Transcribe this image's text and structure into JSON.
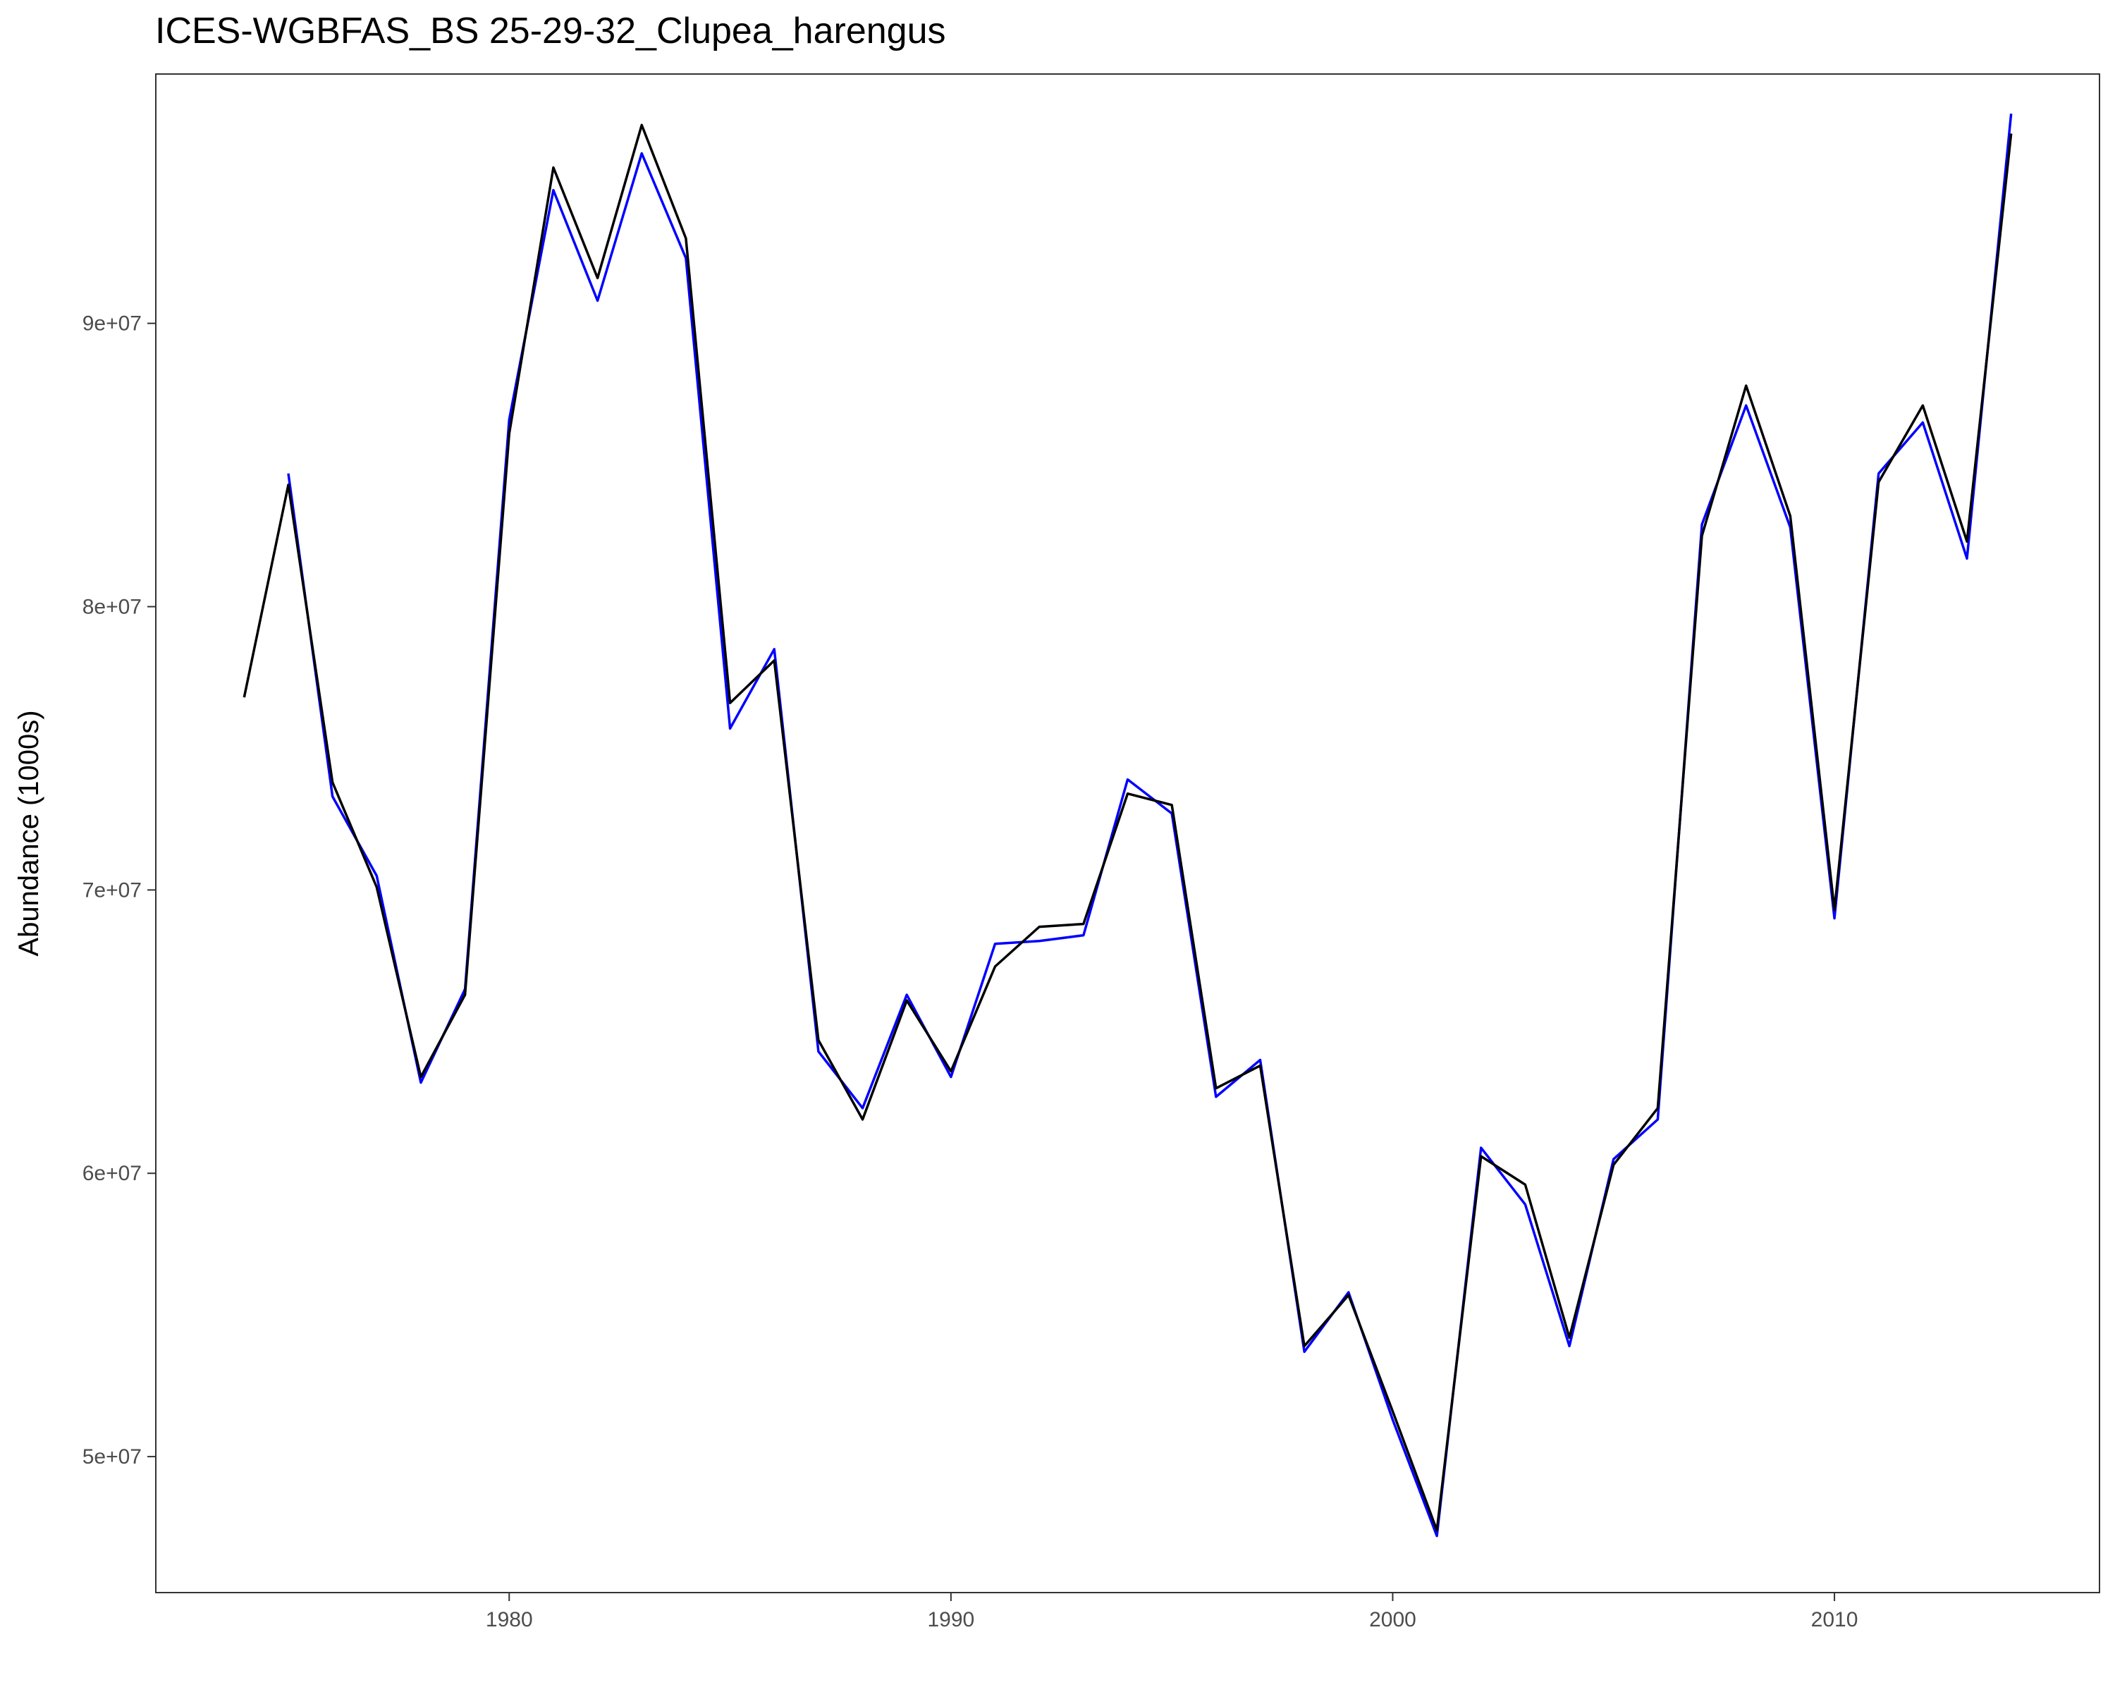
{
  "chart_data": {
    "type": "line",
    "title": "ICES-WGBFAS_BS 25-29-32_Clupea_harengus",
    "xlabel": "",
    "ylabel": "Abundance (1000s)",
    "xlim": [
      1972,
      2016
    ],
    "ylim": [
      45200000,
      98800000
    ],
    "x_ticks": [
      1980,
      1990,
      2000,
      2010
    ],
    "y_ticks": [
      50000000,
      60000000,
      70000000,
      80000000,
      90000000
    ],
    "y_tick_labels": [
      "5e+07",
      "6e+07",
      "7e+07",
      "8e+07",
      "9e+07"
    ],
    "grid": false,
    "legend": "none",
    "series": [
      {
        "color": "#0000ff",
        "x": [
          1975,
          1976,
          1977,
          1978,
          1979,
          1980,
          1981,
          1982,
          1983,
          1984,
          1985,
          1986,
          1987,
          1988,
          1989,
          1990,
          1991,
          1992,
          1993,
          1994,
          1995,
          1996,
          1997,
          1998,
          1999,
          2000,
          2001,
          2002,
          2003,
          2004,
          2005,
          2006,
          2007,
          2008,
          2009,
          2010,
          2011,
          2012,
          2013,
          2014
        ],
        "y": [
          84700000,
          73300000,
          70500000,
          63200000,
          66500000,
          86600000,
          94700000,
          90800000,
          96000000,
          92300000,
          75700000,
          78500000,
          64300000,
          62300000,
          66300000,
          63400000,
          68100000,
          68200000,
          68400000,
          73900000,
          72700000,
          62700000,
          64000000,
          53700000,
          55800000,
          51300000,
          47200000,
          60900000,
          58900000,
          53900000,
          60500000,
          61900000,
          82900000,
          87100000,
          82800000,
          69000000,
          84700000,
          86500000,
          81700000,
          97400000
        ]
      },
      {
        "color": "#000000",
        "x": [
          1974,
          1975,
          1976,
          1977,
          1978,
          1979,
          1980,
          1981,
          1982,
          1983,
          1984,
          1985,
          1986,
          1987,
          1988,
          1989,
          1990,
          1991,
          1992,
          1993,
          1994,
          1995,
          1996,
          1997,
          1998,
          1999,
          2000,
          2001,
          2002,
          2003,
          2004,
          2005,
          2006,
          2007,
          2008,
          2009,
          2010,
          2011,
          2012,
          2013,
          2014
        ],
        "y": [
          76800000,
          84300000,
          73800000,
          70100000,
          63400000,
          66300000,
          86100000,
          95500000,
          91600000,
          97000000,
          93000000,
          76600000,
          78100000,
          64700000,
          61900000,
          66100000,
          63600000,
          67300000,
          68700000,
          68800000,
          73400000,
          73000000,
          63000000,
          63800000,
          53900000,
          55700000,
          51600000,
          47400000,
          60600000,
          59600000,
          54200000,
          60300000,
          62300000,
          82500000,
          87800000,
          83200000,
          69300000,
          84400000,
          87100000,
          82300000,
          96700000
        ]
      }
    ]
  }
}
